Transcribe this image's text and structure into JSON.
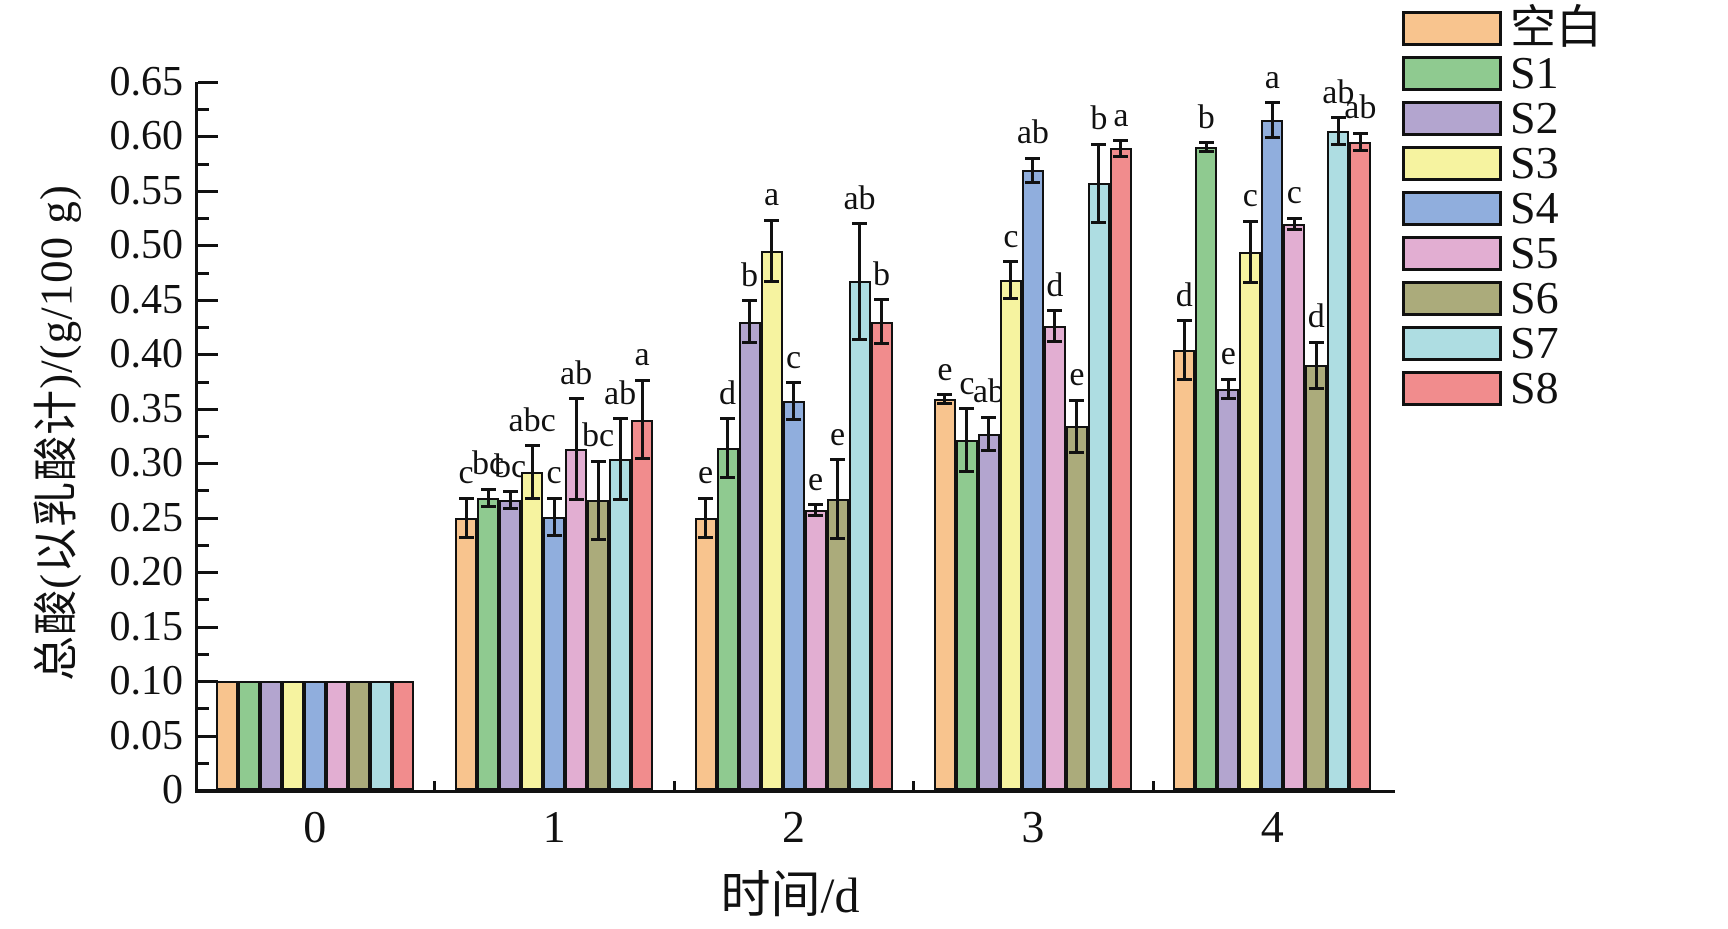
{
  "figure": {
    "y_axis_title": "总酸(以乳酸计)/(g/100 g)",
    "x_axis_title": "时间/d"
  },
  "chart_data": {
    "type": "bar",
    "title": "",
    "xlabel": "时间/d",
    "ylabel": "总酸(以乳酸计)/(g/100 g)",
    "categories": [
      "0",
      "1",
      "2",
      "3",
      "4"
    ],
    "ylim": [
      0,
      0.65
    ],
    "ytick_major_step": 0.05,
    "ytick_minor_step": 0.025,
    "grid": false,
    "legend_position": "right-outside",
    "bar_outline_color": "#111111",
    "series": [
      {
        "name": "空白",
        "color": "#F8C48E",
        "values": [
          0.1,
          0.25,
          0.25,
          0.359,
          0.404
        ],
        "errors": [
          0,
          0.018,
          0.018,
          0.004,
          0.027
        ],
        "letters": [
          "",
          "c",
          "e",
          "e",
          "d"
        ]
      },
      {
        "name": "S1",
        "color": "#8FCA90",
        "values": [
          0.1,
          0.268,
          0.314,
          0.321,
          0.59
        ],
        "errors": [
          0,
          0.008,
          0.027,
          0.029,
          0.004
        ],
        "letters": [
          "",
          "bc",
          "d",
          "c",
          "b"
        ]
      },
      {
        "name": "S2",
        "color": "#B3A5CF",
        "values": [
          0.1,
          0.266,
          0.43,
          0.327,
          0.368
        ],
        "errors": [
          0,
          0.008,
          0.019,
          0.015,
          0.009
        ],
        "letters": [
          "",
          "bc",
          "b",
          "ab",
          "e"
        ]
      },
      {
        "name": "S3",
        "color": "#F6F3A0",
        "values": [
          0.1,
          0.292,
          0.495,
          0.468,
          0.494
        ],
        "errors": [
          0,
          0.024,
          0.028,
          0.017,
          0.028
        ],
        "letters": [
          "",
          "abc",
          "a",
          "c",
          "c"
        ]
      },
      {
        "name": "S4",
        "color": "#90AEDD",
        "values": [
          0.1,
          0.251,
          0.357,
          0.569,
          0.615
        ],
        "errors": [
          0,
          0.017,
          0.017,
          0.011,
          0.016
        ],
        "letters": [
          "",
          "c",
          "c",
          "ab",
          "a"
        ]
      },
      {
        "name": "S5",
        "color": "#E2AED2",
        "values": [
          0.1,
          0.313,
          0.257,
          0.426,
          0.52
        ],
        "errors": [
          0,
          0.046,
          0.005,
          0.014,
          0.005
        ],
        "letters": [
          "",
          "ab",
          "e",
          "d",
          "c"
        ]
      },
      {
        "name": "S6",
        "color": "#ABAB7B",
        "values": [
          0.1,
          0.266,
          0.267,
          0.334,
          0.39
        ],
        "errors": [
          0,
          0.036,
          0.036,
          0.024,
          0.021
        ],
        "letters": [
          "",
          "bc",
          "e",
          "e",
          "d"
        ]
      },
      {
        "name": "S7",
        "color": "#AEDDE2",
        "values": [
          0.1,
          0.304,
          0.467,
          0.557,
          0.605
        ],
        "errors": [
          0,
          0.037,
          0.053,
          0.036,
          0.012
        ],
        "letters": [
          "",
          "ab",
          "ab",
          "b",
          "ab"
        ]
      },
      {
        "name": "S8",
        "color": "#F18C8D",
        "values": [
          0.1,
          0.34,
          0.43,
          0.589,
          0.595
        ],
        "errors": [
          0,
          0.036,
          0.02,
          0.007,
          0.008
        ],
        "letters": [
          "",
          "a",
          "b",
          "a",
          "ab"
        ]
      }
    ]
  }
}
